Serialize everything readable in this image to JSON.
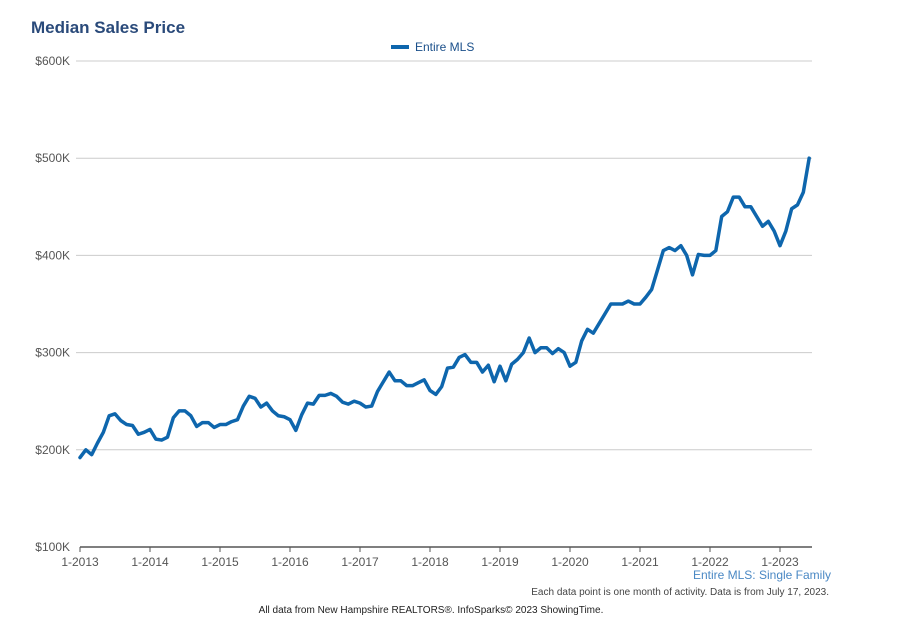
{
  "colors": {
    "title": "#2a4a7a",
    "series": "#0e66ad",
    "grid": "#cccccc"
  },
  "chart_data": {
    "type": "line",
    "title": "Median Sales Price",
    "xlabel": "",
    "ylabel": "",
    "ylim": [
      100000,
      600000
    ],
    "y_ticks": [
      {
        "value": 100000,
        "label": "$100K"
      },
      {
        "value": 200000,
        "label": "$200K"
      },
      {
        "value": 300000,
        "label": "$300K"
      },
      {
        "value": 400000,
        "label": "$400K"
      },
      {
        "value": 500000,
        "label": "$500K"
      },
      {
        "value": 600000,
        "label": "$600K"
      }
    ],
    "x_ticks": [
      "1-2013",
      "1-2014",
      "1-2015",
      "1-2016",
      "1-2017",
      "1-2018",
      "1-2019",
      "1-2020",
      "1-2021",
      "1-2022",
      "1-2023"
    ],
    "x_start": "1-2013",
    "legend": "top-center",
    "grid": true,
    "series": [
      {
        "name": "Entire MLS",
        "values": [
          192000,
          200000,
          195000,
          207000,
          218000,
          235000,
          237000,
          230000,
          226000,
          225000,
          216000,
          218000,
          221000,
          211000,
          210000,
          213000,
          233000,
          240000,
          240000,
          235000,
          224000,
          228000,
          228000,
          223000,
          226000,
          226000,
          229000,
          231000,
          245000,
          255000,
          253000,
          244000,
          248000,
          240000,
          235000,
          234000,
          231000,
          220000,
          236000,
          248000,
          247000,
          256000,
          256000,
          258000,
          255000,
          249000,
          247000,
          250000,
          248000,
          244000,
          245000,
          260000,
          270000,
          280000,
          271000,
          271000,
          266000,
          266000,
          269000,
          272000,
          261000,
          257000,
          265000,
          284000,
          285000,
          295000,
          298000,
          290000,
          290000,
          280000,
          287000,
          270000,
          286000,
          271000,
          288000,
          293000,
          300000,
          315000,
          300000,
          305000,
          305000,
          299000,
          304000,
          300000,
          286000,
          290000,
          312000,
          324000,
          320000,
          330000,
          340000,
          350000,
          350000,
          350000,
          353000,
          350000,
          350000,
          357000,
          365000,
          385000,
          405000,
          408000,
          405000,
          410000,
          400000,
          380000,
          401000,
          400000,
          400000,
          405000,
          440000,
          445000,
          460000,
          460000,
          450000,
          450000,
          440000,
          430000,
          435000,
          425000,
          410000,
          425000,
          448000,
          452000,
          465000,
          500000
        ]
      }
    ]
  },
  "footer": {
    "area_label": "Entire MLS: Single Family",
    "note": "Each data point is one month of activity. Data is from July 17, 2023.",
    "source": "All data from New Hampshire REALTORS®. InfoSparks© 2023 ShowingTime."
  }
}
